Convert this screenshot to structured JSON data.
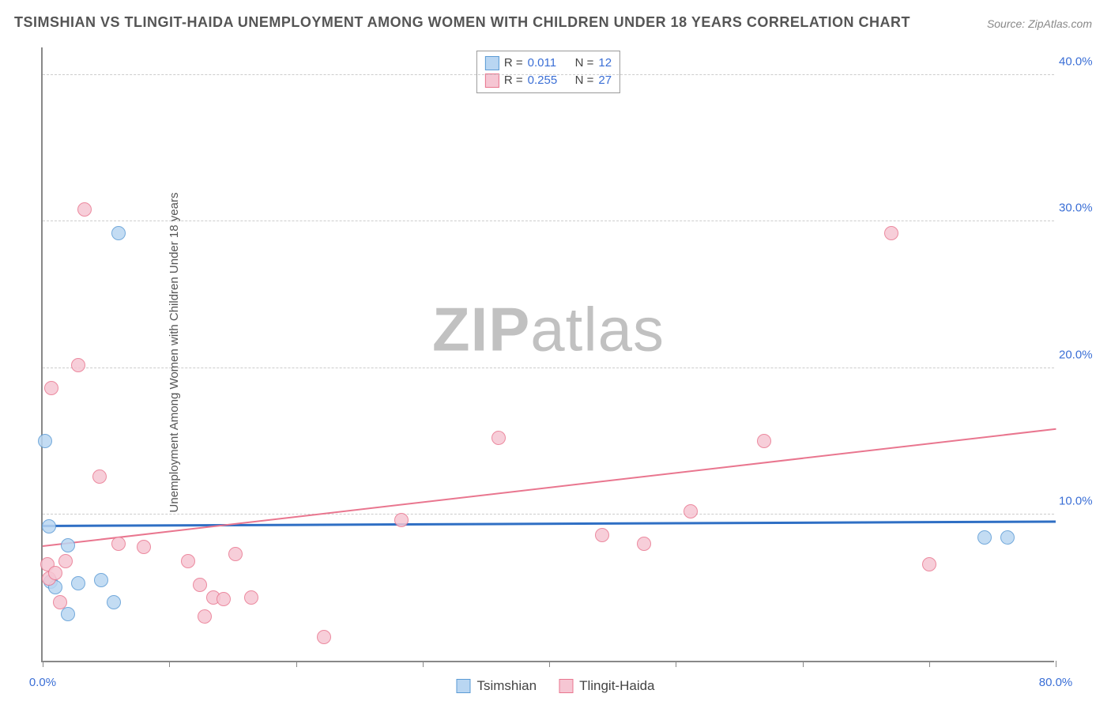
{
  "title": "TSIMSHIAN VS TLINGIT-HAIDA UNEMPLOYMENT AMONG WOMEN WITH CHILDREN UNDER 18 YEARS CORRELATION CHART",
  "source": "Source: ZipAtlas.com",
  "ylabel": "Unemployment Among Women with Children Under 18 years",
  "watermark_a": "ZIP",
  "watermark_b": "atlas",
  "chart": {
    "type": "scatter",
    "x_range": [
      0,
      80
    ],
    "y_range": [
      0,
      42
    ],
    "x_ticks": [
      0,
      10,
      20,
      30,
      40,
      50,
      60,
      70,
      80
    ],
    "x_tick_labels": {
      "0": "0.0%",
      "80": "80.0%"
    },
    "y_gridlines": [
      10,
      20,
      30,
      40
    ],
    "y_tick_labels": {
      "10": "10.0%",
      "20": "20.0%",
      "30": "30.0%",
      "40": "40.0%"
    },
    "background": "#ffffff",
    "grid_color": "#cccccc",
    "axis_color": "#888888",
    "marker_radius": 9,
    "marker_stroke": 1.5,
    "series": [
      {
        "name": "Tsimshian",
        "fill": "#b9d6f2",
        "stroke": "#5b9bd5",
        "r_value": "0.011",
        "n_value": "12",
        "trend": {
          "y_at_x0": 9.1,
          "y_at_xmax": 9.4,
          "color": "#2f6fc4",
          "width": 3
        },
        "points": [
          [
            0.2,
            15.0
          ],
          [
            0.5,
            9.2
          ],
          [
            0.6,
            5.4
          ],
          [
            1.0,
            5.0
          ],
          [
            2.0,
            3.2
          ],
          [
            2.0,
            7.9
          ],
          [
            2.8,
            5.3
          ],
          [
            4.6,
            5.5
          ],
          [
            5.6,
            4.0
          ],
          [
            6.0,
            29.2
          ],
          [
            74.4,
            8.4
          ],
          [
            76.2,
            8.4
          ]
        ]
      },
      {
        "name": "Tlingit-Haida",
        "fill": "#f6c6d3",
        "stroke": "#e9768f",
        "r_value": "0.255",
        "n_value": "27",
        "trend": {
          "y_at_x0": 7.8,
          "y_at_xmax": 15.8,
          "color": "#e9768f",
          "width": 2
        },
        "points": [
          [
            0.4,
            6.6
          ],
          [
            0.5,
            5.6
          ],
          [
            0.7,
            18.6
          ],
          [
            1.0,
            6.0
          ],
          [
            1.4,
            4.0
          ],
          [
            1.8,
            6.8
          ],
          [
            2.8,
            20.2
          ],
          [
            3.3,
            30.8
          ],
          [
            4.5,
            12.6
          ],
          [
            6.0,
            8.0
          ],
          [
            8.0,
            7.8
          ],
          [
            11.5,
            6.8
          ],
          [
            12.4,
            5.2
          ],
          [
            12.8,
            3.0
          ],
          [
            13.5,
            4.3
          ],
          [
            14.3,
            4.2
          ],
          [
            15.2,
            7.3
          ],
          [
            16.5,
            4.3
          ],
          [
            22.2,
            1.6
          ],
          [
            28.3,
            9.6
          ],
          [
            36.0,
            15.2
          ],
          [
            44.2,
            8.6
          ],
          [
            47.5,
            8.0
          ],
          [
            51.2,
            10.2
          ],
          [
            57.0,
            15.0
          ],
          [
            67.0,
            29.2
          ],
          [
            70.0,
            6.6
          ]
        ]
      }
    ]
  },
  "legend_top_labels": {
    "R": "R =",
    "N": "N ="
  },
  "legend_bottom": [
    "Tsimshian",
    "Tlingit-Haida"
  ]
}
